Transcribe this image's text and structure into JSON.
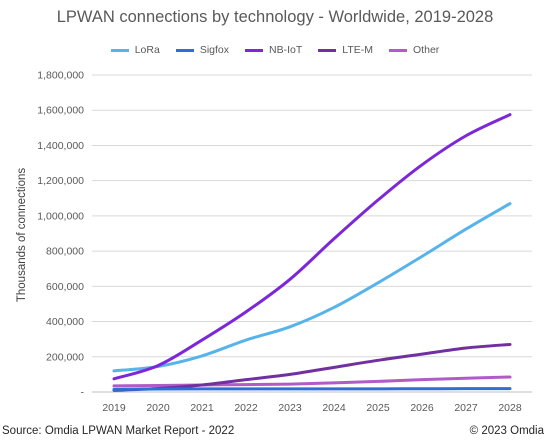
{
  "header": {
    "title": "LPWAN connections by technology - Worldwide, 2019-2028"
  },
  "footer": {
    "source": "Source: Omdia LPWAN Market Report - 2022",
    "copyright": "© 2023 Omdia"
  },
  "colors": {
    "LoRa": "#56b4ea",
    "Sigfox": "#2e6fd6",
    "NB-IoT": "#7c27d8",
    "LTE-M": "#7030a0",
    "Other": "#b05cc8"
  },
  "chart_data": {
    "type": "line",
    "title": "LPWAN connections by technology - Worldwide, 2019-2028",
    "xlabel": "",
    "ylabel": "Thousands of connections",
    "x": [
      "2019",
      "2020",
      "2021",
      "2022",
      "2023",
      "2024",
      "2025",
      "2026",
      "2027",
      "2028"
    ],
    "ylim": [
      0,
      1800000
    ],
    "yticks": [
      0,
      200000,
      400000,
      600000,
      800000,
      1000000,
      1200000,
      1400000,
      1600000,
      1800000
    ],
    "ytick_labels": [
      "-",
      "200,000",
      "400,000",
      "600,000",
      "800,000",
      "1,000,000",
      "1,200,000",
      "1,400,000",
      "1,600,000",
      "1,800,000"
    ],
    "grid": true,
    "legend": "top",
    "series": [
      {
        "name": "LoRa",
        "values": [
          120000,
          145000,
          205000,
          295000,
          370000,
          480000,
          620000,
          770000,
          925000,
          1070000
        ]
      },
      {
        "name": "Sigfox",
        "values": [
          15000,
          17000,
          18000,
          18000,
          18000,
          18000,
          18000,
          18500,
          19000,
          19000
        ]
      },
      {
        "name": "NB-IoT",
        "values": [
          75000,
          150000,
          295000,
          455000,
          640000,
          870000,
          1090000,
          1290000,
          1455000,
          1575000
        ]
      },
      {
        "name": "LTE-M",
        "values": [
          10000,
          20000,
          40000,
          70000,
          100000,
          140000,
          180000,
          215000,
          250000,
          270000
        ]
      },
      {
        "name": "Other",
        "values": [
          35000,
          37000,
          40000,
          42000,
          45000,
          52000,
          60000,
          70000,
          78000,
          85000
        ]
      }
    ]
  }
}
